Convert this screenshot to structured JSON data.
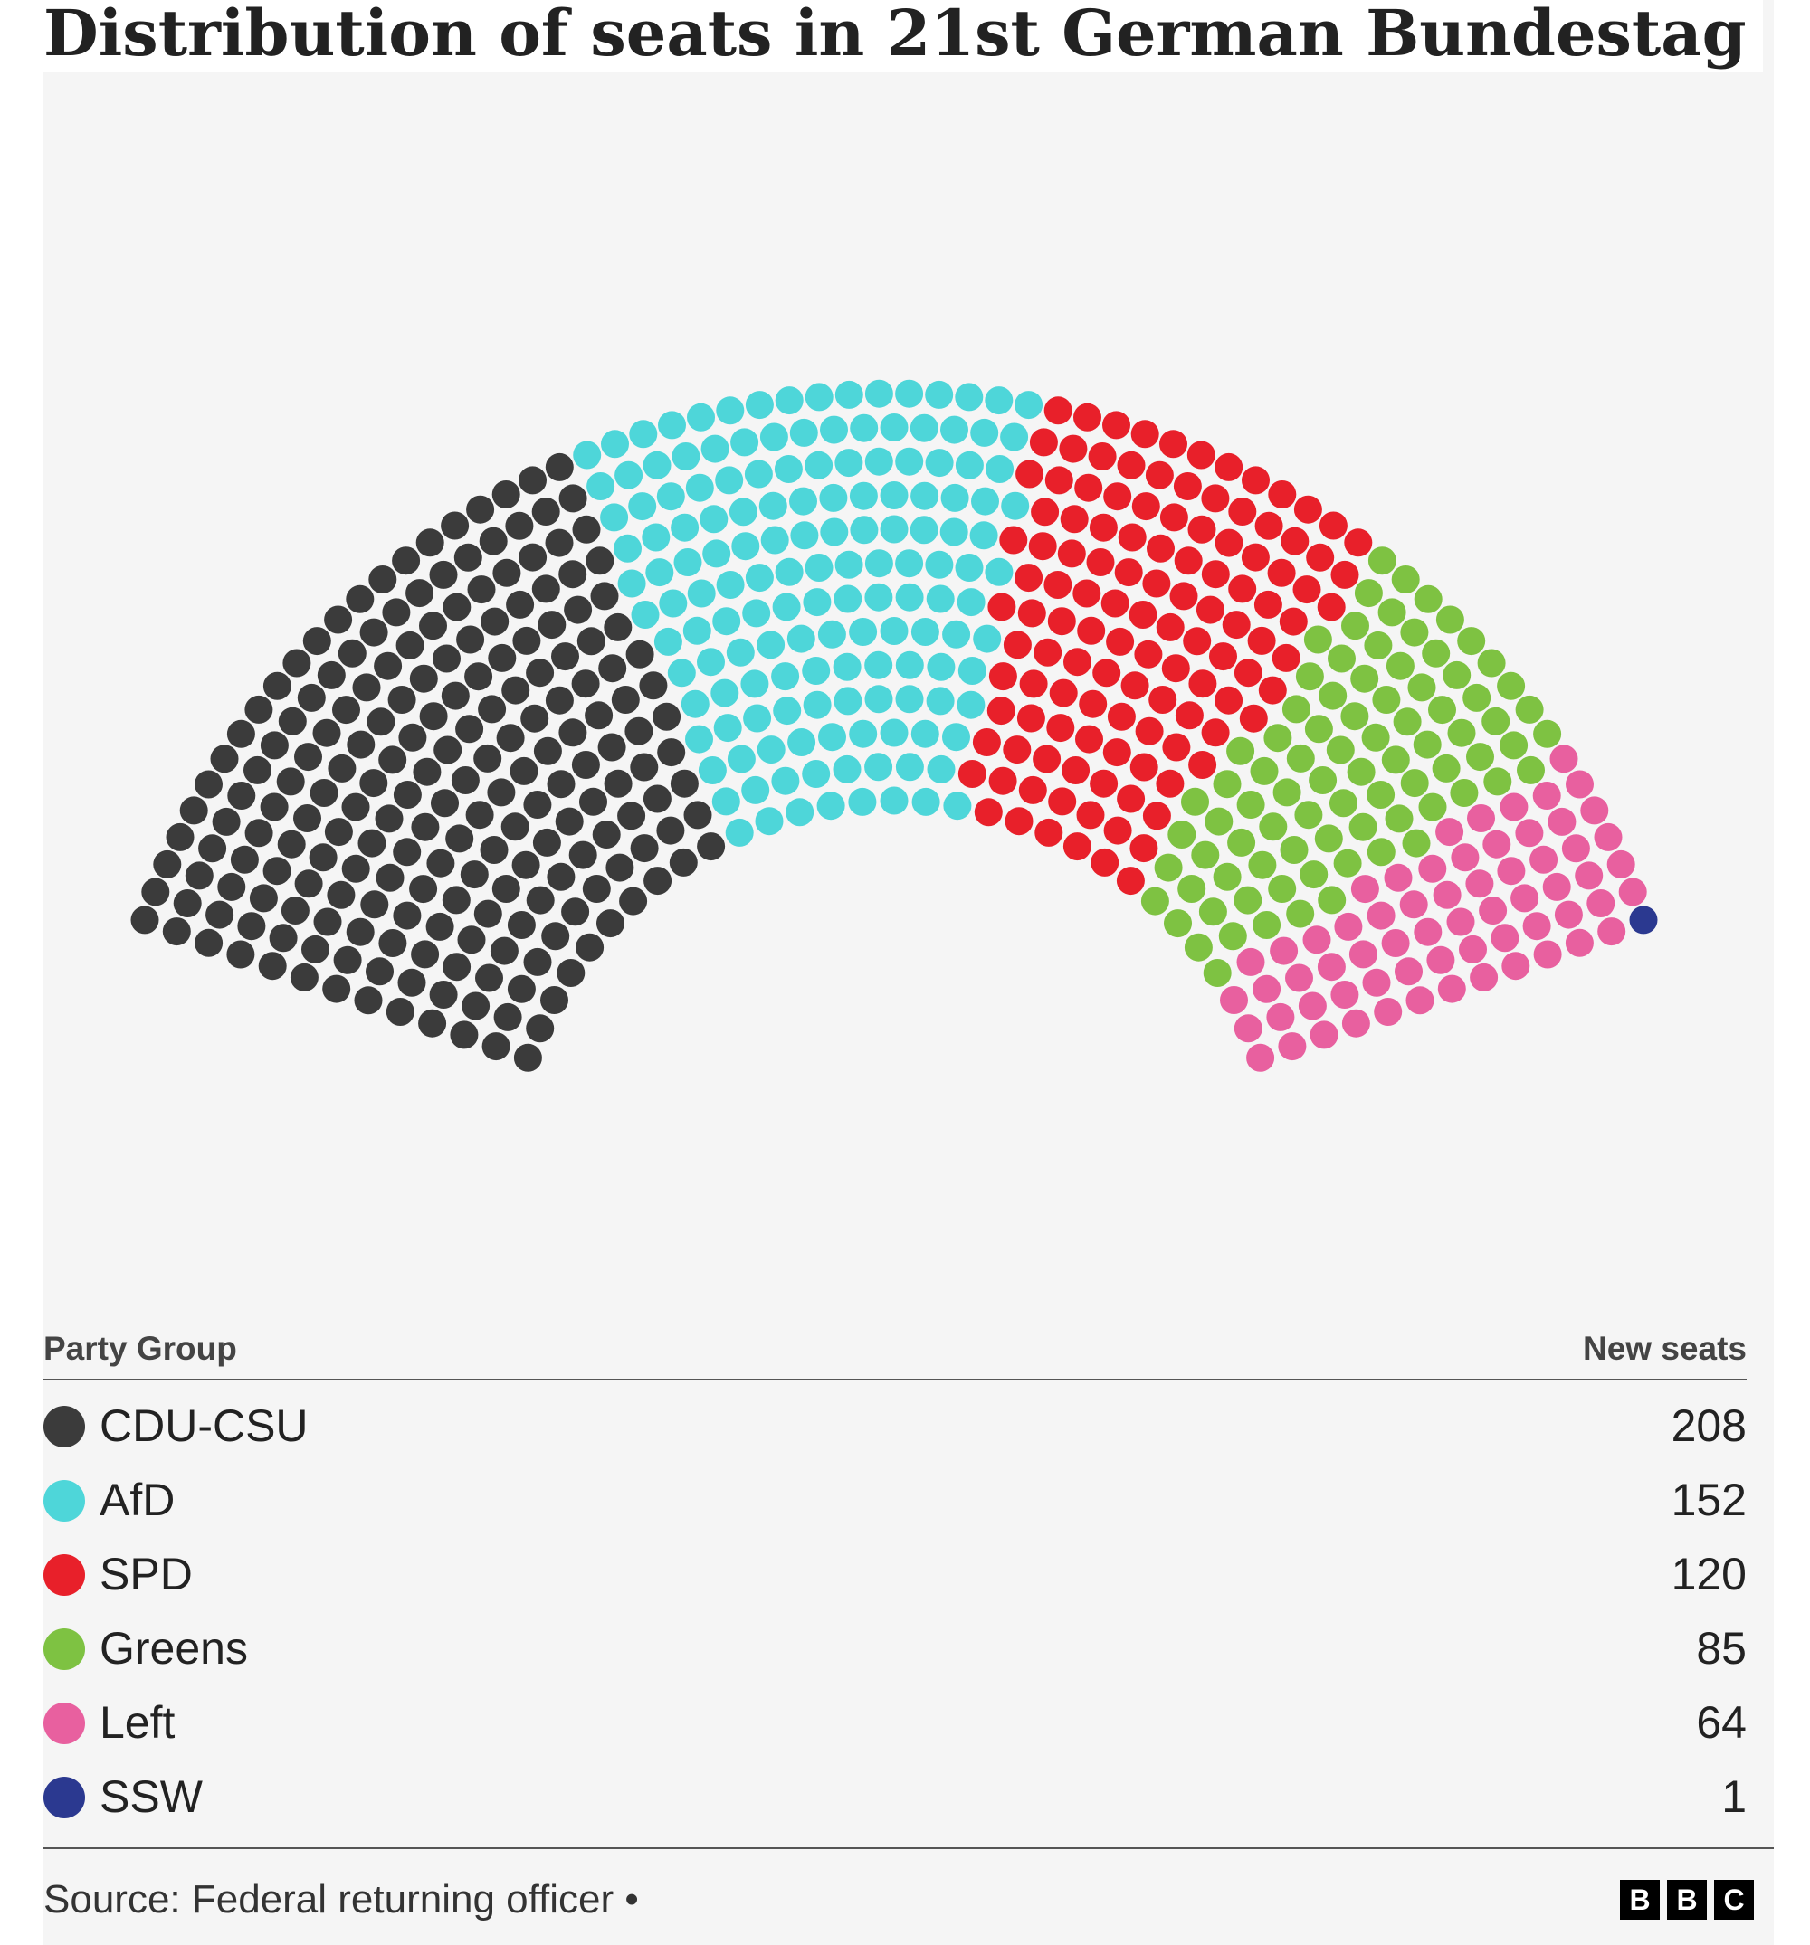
{
  "chart_data": {
    "type": "parliament",
    "title": "Distribution of seats in 21st German Bundestag",
    "table_headers": {
      "party": "Party Group",
      "seats": "New seats"
    },
    "series": [
      {
        "name": "CDU-CSU",
        "value": 208,
        "color": "#3b3b3b"
      },
      {
        "name": "AfD",
        "value": 152,
        "color": "#4ed6d9"
      },
      {
        "name": "SPD",
        "value": 120,
        "color": "#e8202a"
      },
      {
        "name": "Greens",
        "value": 85,
        "color": "#7ec242"
      },
      {
        "name": "Left",
        "value": 64,
        "color": "#e8609f"
      },
      {
        "name": "SSW",
        "value": 1,
        "color": "#2b3990"
      }
    ],
    "total": 630,
    "source": "Source: Federal returning officer •"
  },
  "brand": {
    "letters": [
      "B",
      "B",
      "C"
    ]
  }
}
